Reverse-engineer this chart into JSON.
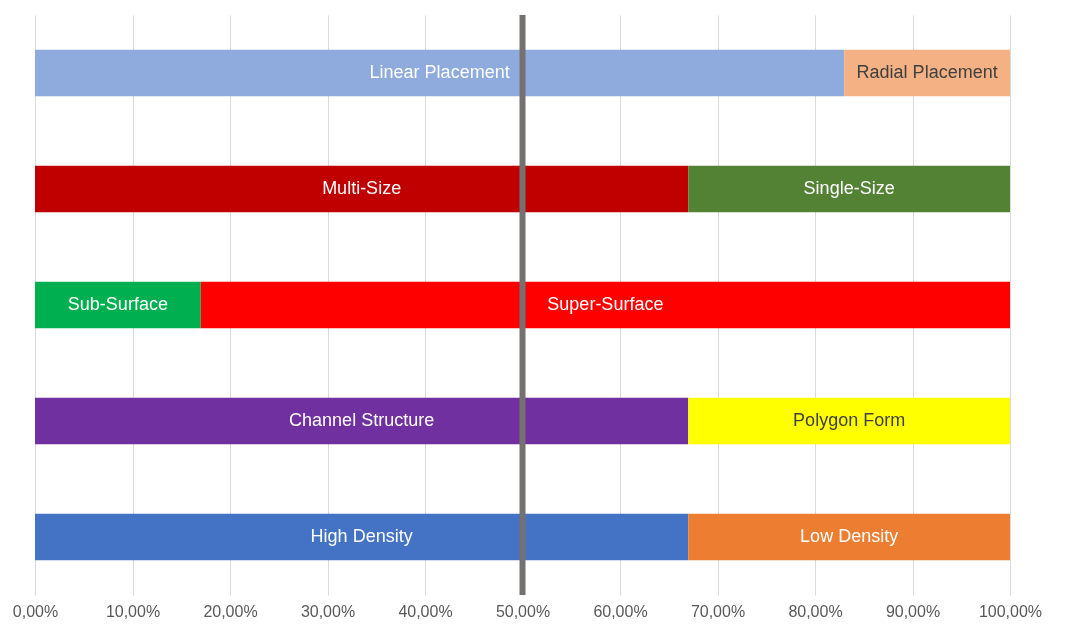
{
  "chart_data": {
    "type": "bar",
    "orientation": "horizontal",
    "stacked": true,
    "categories": [
      null,
      null,
      null,
      null,
      null
    ],
    "series": [
      {
        "name": "Linear Placement",
        "color": "#8faadc",
        "values": [
          83,
          null,
          null,
          null,
          null
        ]
      },
      {
        "name": "Radial Placement",
        "color": "#f4b183",
        "values": [
          17,
          null,
          null,
          null,
          null
        ]
      },
      {
        "name": "Multi-Size",
        "color": "#c00000",
        "values": [
          null,
          67,
          null,
          null,
          null
        ]
      },
      {
        "name": "Single-Size",
        "color": "#548235",
        "values": [
          null,
          33,
          null,
          null,
          null
        ]
      },
      {
        "name": "Sub-Surface",
        "color": "#00b050",
        "values": [
          null,
          null,
          17,
          null,
          null
        ]
      },
      {
        "name": "Super-Surface",
        "color": "#ff0000",
        "values": [
          null,
          null,
          83,
          null,
          null
        ]
      },
      {
        "name": "Channel Structure",
        "color": "#7030a0",
        "values": [
          null,
          null,
          null,
          67,
          null
        ]
      },
      {
        "name": "Polygon Form",
        "color": "#ffff00",
        "values": [
          null,
          null,
          null,
          33,
          null
        ]
      },
      {
        "name": "High Density",
        "color": "#4472c4",
        "values": [
          null,
          null,
          null,
          null,
          67
        ]
      },
      {
        "name": "Low Density",
        "color": "#ed7d31",
        "values": [
          null,
          null,
          null,
          null,
          33
        ]
      }
    ],
    "xlim": [
      0,
      100
    ],
    "xticks": [
      {
        "value": 0,
        "label": "0,00%"
      },
      {
        "value": 10,
        "label": "10,00%"
      },
      {
        "value": 20,
        "label": "20,00%"
      },
      {
        "value": 30,
        "label": "30,00%"
      },
      {
        "value": 40,
        "label": "40,00%"
      },
      {
        "value": 50,
        "label": "50,00%"
      },
      {
        "value": 60,
        "label": "60,00%"
      },
      {
        "value": 70,
        "label": "70,00%"
      },
      {
        "value": 80,
        "label": "80,00%"
      },
      {
        "value": 90,
        "label": "90,00%"
      },
      {
        "value": 100,
        "label": "100,00%"
      }
    ],
    "grid": "x",
    "legend": false,
    "tick_labels": "x",
    "ref_lines": [
      {
        "axis": "x",
        "value": 50,
        "color": "#767171"
      }
    ]
  }
}
